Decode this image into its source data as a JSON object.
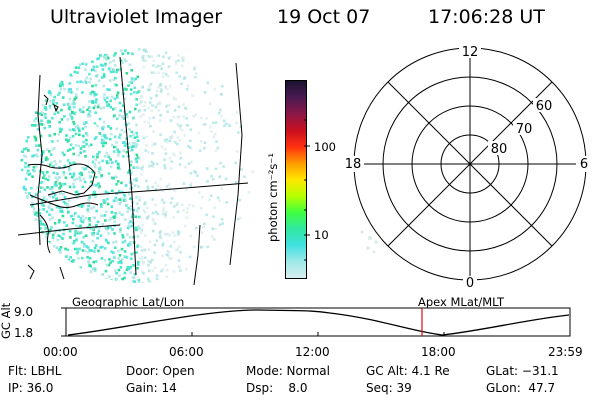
{
  "header": {
    "title": "Ultraviolet Imager",
    "date": "19 Oct 07",
    "time": "17:06:28 UT"
  },
  "colorbar": {
    "unit_label": "photon cm⁻²s⁻¹",
    "ticks": [
      "100",
      "10"
    ],
    "colors": [
      "#1a1230",
      "#4a1a52",
      "#8a1848",
      "#c81020",
      "#ff3010",
      "#ff9a00",
      "#ffe600",
      "#b8ff00",
      "#40ff40",
      "#30e8a0",
      "#40e0e0",
      "#a0e8e8",
      "#d8eeee"
    ]
  },
  "polar": {
    "clock_labels": {
      "top": "12",
      "left": "18",
      "right": "6",
      "bottom": "0"
    },
    "lat_labels": [
      "60",
      "70",
      "80"
    ]
  },
  "orbit_panel": {
    "left_label": "Geographic Lat/Lon",
    "right_label": "Apex MLat/MLT",
    "axis_label": "GC Alt",
    "y_ticks": [
      "9.0",
      "1.8"
    ],
    "x_ticks": [
      "00:00",
      "06:00",
      "12:00",
      "18:00",
      "23:59"
    ]
  },
  "status": {
    "flt": "Flt: LBHL",
    "ip": "IP: 36.0",
    "door": "Door: Open",
    "gain": "Gain: 14",
    "mode": "Mode: Normal",
    "dsp": "Dsp:    8.0",
    "gcalt": "GC Alt: 4.1 Re",
    "seq": "Seq: 39",
    "glat": "GLat: −31.1",
    "glon": "GLon:  47.7"
  }
}
